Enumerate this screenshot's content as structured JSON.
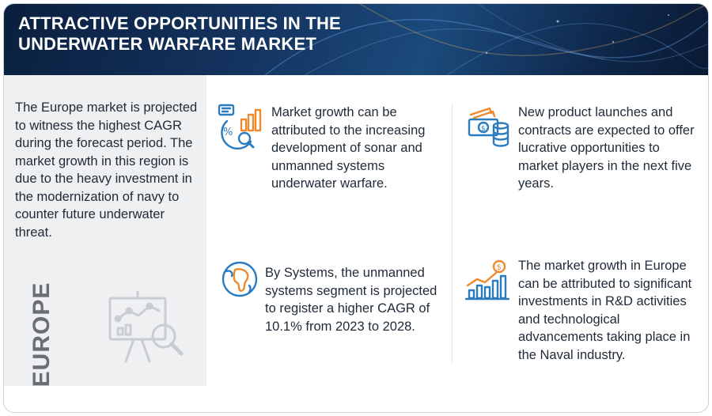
{
  "header": {
    "title": "ATTRACTIVE OPPORTUNITIES IN THE UNDERWATER WARFARE MARKET"
  },
  "left_panel": {
    "description": "The Europe market is projected to witness the highest CAGR during the forecast period. The market growth in this region is due to the heavy investment in the modernization of navy to counter future underwater threat.",
    "region": "EUROPE",
    "illustration_icon": "presentation-board-analytics-icon"
  },
  "insights": [
    {
      "icon": "growth-chart-magnifier-icon",
      "text": "Market growth can be attributed to the increasing development of sonar and unmanned systems underwater warfare."
    },
    {
      "icon": "cash-coins-icon",
      "text": "New product launches and contracts are expected to offer lucrative opportunities to market players in the next five years."
    },
    {
      "icon": "globe-africa-icon",
      "text": "By Systems, the unmanned systems segment is projected to register a higher CAGR of 10.1% from 2023 to 2028."
    },
    {
      "icon": "dollar-bar-chart-icon",
      "text": "The market growth in Europe can be attributed to significant investments in R&D activities and technological advancements taking place in the Naval industry."
    }
  ],
  "colors": {
    "accent_blue": "#2b7bbf",
    "accent_orange": "#f0892b",
    "banner_dark": "#0a1f3d",
    "panel_grey": "#eef0f2"
  }
}
